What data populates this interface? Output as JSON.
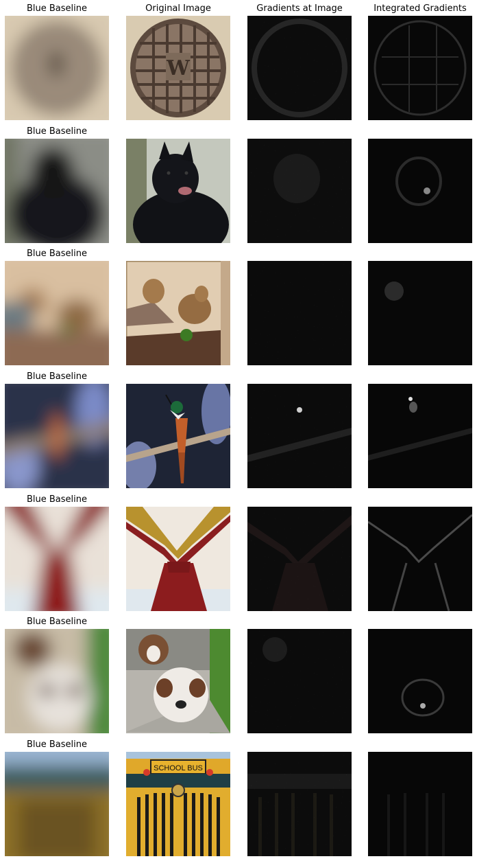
{
  "column_titles": [
    "Blue Baseline",
    "Original Image",
    "Gradients at Image",
    "Integrated Gradients"
  ],
  "row_title": "Blue Baseline",
  "rows": [
    {
      "subject": "manhole cover",
      "sign_letter": "W"
    },
    {
      "subject": "black dog"
    },
    {
      "subject": "monkeys"
    },
    {
      "subject": "bird on branch"
    },
    {
      "subject": "necktie"
    },
    {
      "subject": "puppies"
    },
    {
      "subject": "school bus",
      "sign_text": "SCHOOL BUS"
    }
  ]
}
